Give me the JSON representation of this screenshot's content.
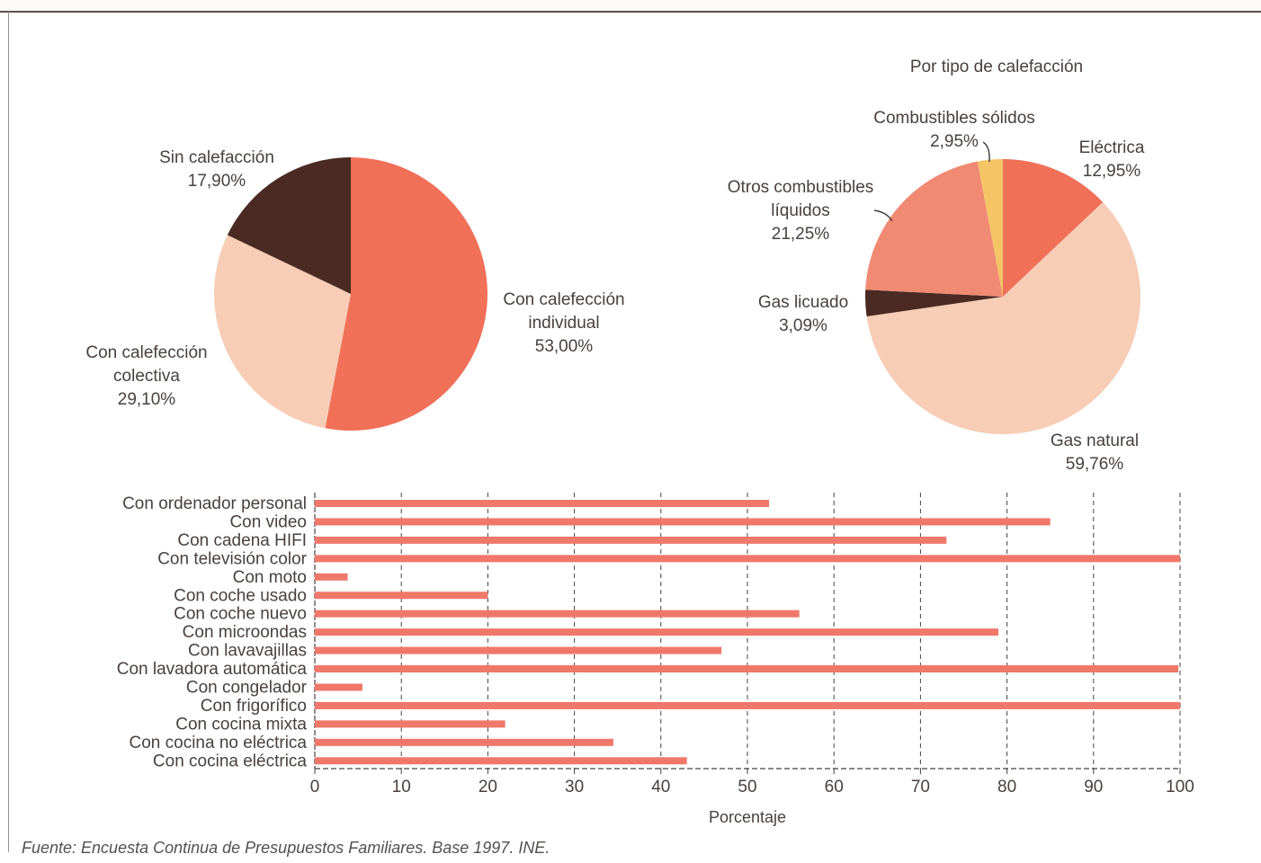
{
  "source_note": "Fuente: Encuesta Continua de Presupuestos Familiares. Base 1997. INE.",
  "colors": {
    "dark_brown": "#4a2a22",
    "coral": "#f07058",
    "light_peach": "#f7cdb6",
    "salmon": "#f08a72",
    "yellow": "#f4c465",
    "bar": "#f0786a"
  },
  "chart_data": [
    {
      "type": "pie",
      "title": "",
      "slices": [
        {
          "label": "Con calefección individual",
          "lines": [
            "Con calefección",
            "individual"
          ],
          "value": 53.0,
          "text": "53,00%",
          "color": "#f07058"
        },
        {
          "label": "Con calefección colectiva",
          "lines": [
            "Con calefección",
            "colectiva"
          ],
          "value": 29.1,
          "text": "29,10%",
          "color": "#f7cdb6"
        },
        {
          "label": "Sin calefacción",
          "lines": [
            "Sin calefacción"
          ],
          "value": 17.9,
          "text": "17,90%",
          "color": "#4a2a22"
        }
      ]
    },
    {
      "type": "pie",
      "title": "Por tipo de calefacción",
      "slices": [
        {
          "label": "Eléctrica",
          "lines": [
            "Eléctrica"
          ],
          "value": 12.95,
          "text": "12,95%",
          "color": "#f07058"
        },
        {
          "label": "Gas natural",
          "lines": [
            "Gas natural"
          ],
          "value": 59.76,
          "text": "59,76%",
          "color": "#f7cdb6"
        },
        {
          "label": "Gas licuado",
          "lines": [
            "Gas licuado"
          ],
          "value": 3.09,
          "text": "3,09%",
          "color": "#4a2a22"
        },
        {
          "label": "Otros combustibles líquidos",
          "lines": [
            "Otros combustibles",
            "líquidos"
          ],
          "value": 21.25,
          "text": "21,25%",
          "color": "#f08a72"
        },
        {
          "label": "Combustibles sólidos",
          "lines": [
            "Combustibles sólidos"
          ],
          "value": 2.95,
          "text": "2,95%",
          "color": "#f4c465"
        }
      ]
    },
    {
      "type": "bar",
      "orientation": "horizontal",
      "xlabel": "Porcentaje",
      "xlim": [
        0,
        100
      ],
      "xticks": [
        0,
        10,
        20,
        30,
        40,
        50,
        60,
        70,
        80,
        90,
        100
      ],
      "grid": true,
      "categories": [
        "Con ordenador personal",
        "Con video",
        "Con cadena HIFI",
        "Con televisión color",
        "Con moto",
        "Con coche usado",
        "Con coche nuevo",
        "Con microondas",
        "Con lavavajillas",
        "Con lavadora automática",
        "Con congelador",
        "Con frigorífico",
        "Con cocina  mixta",
        "Con cocina no eléctrica",
        "Con cocina eléctrica"
      ],
      "values": [
        52.5,
        85,
        73,
        100,
        3.8,
        20,
        56,
        79,
        47,
        99.8,
        5.5,
        100,
        22,
        34.5,
        43
      ]
    }
  ]
}
